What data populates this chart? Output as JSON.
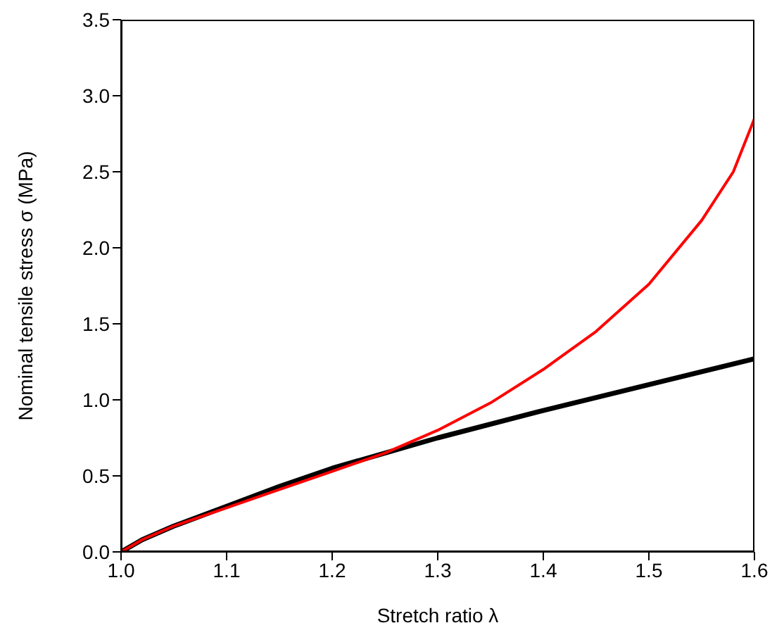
{
  "chart_data": {
    "type": "line",
    "xlabel": "Stretch ratio λ",
    "ylabel": "Nominal tensile stress σ (MPa)",
    "xlim": [
      1.0,
      1.6
    ],
    "ylim": [
      0,
      3.5
    ],
    "xticks": [
      {
        "value": 1.0,
        "label": "1.0"
      },
      {
        "value": 1.1,
        "label": "1.1"
      },
      {
        "value": 1.2,
        "label": "1.2"
      },
      {
        "value": 1.3,
        "label": "1.3"
      },
      {
        "value": 1.4,
        "label": "1.4"
      },
      {
        "value": 1.5,
        "label": "1.5"
      },
      {
        "value": 1.6,
        "label": "1.6"
      }
    ],
    "yticks": [
      {
        "value": 0,
        "label": "0.0"
      },
      {
        "value": 0.5,
        "label": "0.5"
      },
      {
        "value": 1.0,
        "label": "1.0"
      },
      {
        "value": 1.5,
        "label": "1.5"
      },
      {
        "value": 2.0,
        "label": "2.0"
      },
      {
        "value": 2.5,
        "label": "2.5"
      },
      {
        "value": 3.0,
        "label": "3.0"
      },
      {
        "value": 3.5,
        "label": "3.5"
      }
    ],
    "grid": false,
    "marker": "none",
    "line_style": "solid",
    "series": [
      {
        "color": "#000000",
        "x": [
          1.0,
          1.02,
          1.05,
          1.1,
          1.15,
          1.2,
          1.3,
          1.4,
          1.5,
          1.6
        ],
        "values": [
          0,
          0.08,
          0.17,
          0.3,
          0.43,
          0.55,
          0.75,
          0.93,
          1.1,
          1.27
        ]
      },
      {
        "color": "#ff0000",
        "x": [
          1.0,
          1.02,
          1.05,
          1.1,
          1.15,
          1.2,
          1.25,
          1.3,
          1.35,
          1.4,
          1.45,
          1.5,
          1.55,
          1.58,
          1.6
        ],
        "values": [
          0,
          0.08,
          0.17,
          0.29,
          0.41,
          0.53,
          0.65,
          0.8,
          0.98,
          1.2,
          1.45,
          1.76,
          2.18,
          2.5,
          2.85
        ]
      }
    ]
  }
}
